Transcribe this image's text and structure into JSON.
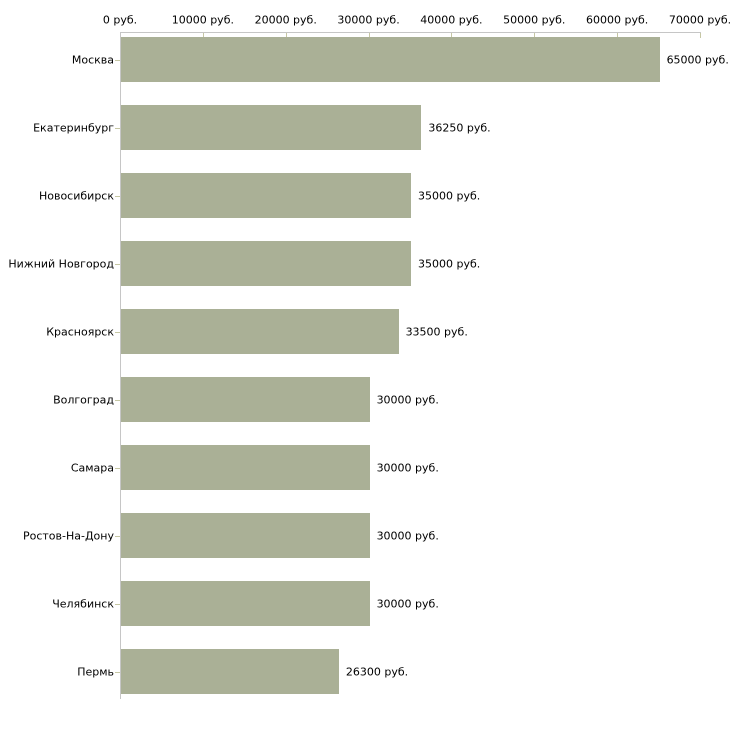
{
  "chart_data": {
    "type": "bar",
    "orientation": "horizontal",
    "title": "",
    "categories": [
      "Москва",
      "Екатеринбург",
      "Новосибирск",
      "Нижний Новгород",
      "Красноярск",
      "Волгоград",
      "Самара",
      "Ростов-На-Дону",
      "Челябинск",
      "Пермь"
    ],
    "values": [
      65000,
      36250,
      35000,
      35000,
      33500,
      30000,
      30000,
      30000,
      30000,
      26300
    ],
    "value_labels": [
      "65000 руб.",
      "36250 руб.",
      "35000 руб.",
      "35000 руб.",
      "33500 руб.",
      "30000 руб.",
      "30000 руб.",
      "30000 руб.",
      "30000 руб.",
      "26300 руб."
    ],
    "x_axis": {
      "position": "top",
      "min": 0,
      "max": 70000,
      "tick_values": [
        0,
        10000,
        20000,
        30000,
        40000,
        50000,
        60000,
        70000
      ],
      "tick_labels": [
        "0 руб.",
        "10000 руб.",
        "20000 руб.",
        "30000 руб.",
        "40000 руб.",
        "50000 руб.",
        "60000 руб.",
        "70000 руб."
      ]
    },
    "unit_suffix": "руб.",
    "grid": false,
    "legend": false,
    "colors": {
      "bar_fill": "#aab096",
      "axis_line": "#c6c6c6",
      "tick_mark": "#c6c7a4",
      "label_text": "#000000",
      "background": "#ffffff"
    }
  }
}
